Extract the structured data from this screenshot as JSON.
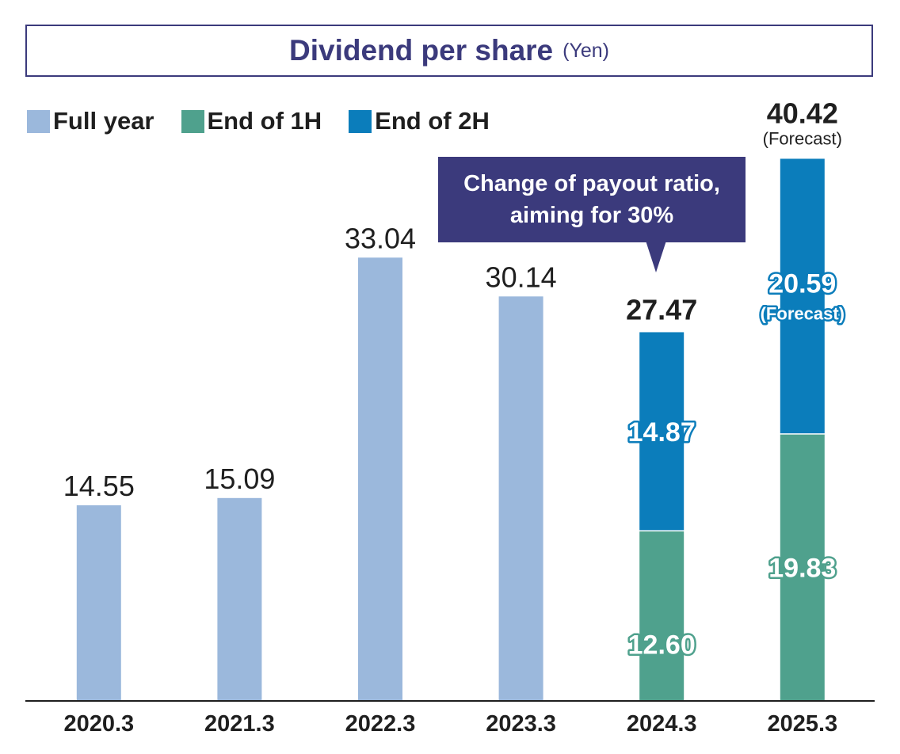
{
  "title": {
    "main": "Dividend per share",
    "unit": "(Yen)"
  },
  "legend": [
    {
      "label": "Full year",
      "color": "#9bb8dc"
    },
    {
      "label": "End of 1H",
      "color": "#4fa18d"
    },
    {
      "label": "End of 2H",
      "color": "#0b7dbb"
    }
  ],
  "callout": {
    "line1": "Change of payout ratio,",
    "line2": "aiming for 30%"
  },
  "chart_data": {
    "type": "bar",
    "title": "Dividend per share",
    "ylabel": "(Yen)",
    "categories": [
      "2020.3",
      "2021.3",
      "2022.3",
      "2023.3",
      "2024.3",
      "2025.3"
    ],
    "ylim": [
      0,
      45
    ],
    "series": [
      {
        "name": "Full year",
        "color": "#9bb8dc",
        "values": [
          14.55,
          15.09,
          33.04,
          30.14,
          null,
          null
        ]
      },
      {
        "name": "End of 1H",
        "color": "#4fa18d",
        "values": [
          null,
          null,
          null,
          null,
          12.6,
          19.83
        ]
      },
      {
        "name": "End of 2H",
        "color": "#0b7dbb",
        "values": [
          null,
          null,
          null,
          null,
          14.87,
          20.59
        ]
      }
    ],
    "totals": [
      "14.55",
      "15.09",
      "33.04",
      "30.14",
      "27.47",
      "40.42"
    ],
    "segment_labels": {
      "end_of_1h": [
        null,
        null,
        null,
        null,
        "12.60",
        "19.83"
      ],
      "end_of_2h": [
        null,
        null,
        null,
        null,
        "14.87",
        "20.59"
      ]
    },
    "forecast_note": "(Forecast)",
    "forecast_notes": {
      "total": [
        null,
        null,
        null,
        null,
        null,
        "(Forecast)"
      ],
      "end_of_2h": [
        null,
        null,
        null,
        null,
        null,
        "(Forecast)"
      ]
    },
    "grid": false,
    "legend_position": "top-left"
  }
}
